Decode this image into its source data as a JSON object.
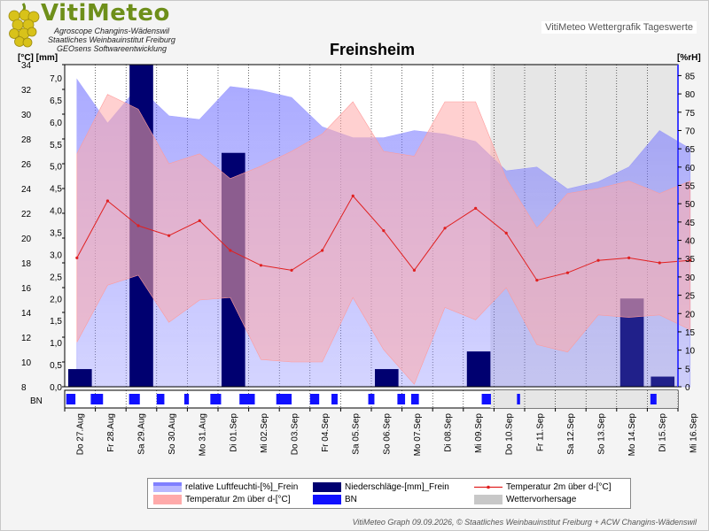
{
  "header": {
    "logo_word": "VitiMeteo",
    "logo_lines": [
      "Agroscope Changins-Wädenswil",
      "Staatliches Weinbauinstitut Freiburg",
      "GEOsens Softwareentwicklung"
    ],
    "subtitle": "VitiMeteo Wettergrafik Tageswerte"
  },
  "footer": "VitiMeteo Graph 09.09.2026, © Staatliches Weinbauinstitut Freiburg + ACW Changins-Wädenswil",
  "colors": {
    "humidity": "#7f7fff",
    "precip": "#000070",
    "temp_line": "#e02020",
    "temp_band": "#ffaaaa",
    "bn": "#1010ff",
    "forecast": "#c8c8c8"
  },
  "chart_data": {
    "type": "line",
    "title": "Freinsheim",
    "y_left_label": "[°C] [mm]",
    "y_right_label": "[%rH]",
    "x": [
      "Do 27.Aug",
      "Fr 28.Aug",
      "Sa 29.Aug",
      "So 30.Aug",
      "Mo 31.Aug",
      "Di 01.Sep",
      "Mi 02.Sep",
      "Do 03.Sep",
      "Fr 04.Sep",
      "Sa 05.Sep",
      "So 06.Sep",
      "Mo 07.Sep",
      "Di 08.Sep",
      "Mi 09.Sep",
      "Do 10.Sep",
      "Fr 11.Sep",
      "Sa 12.Sep",
      "So 13.Sep",
      "Mo 14.Sep",
      "Di 15.Sep",
      "Mi 16.Sep"
    ],
    "temp_ticks": [
      8,
      10,
      12,
      14,
      16,
      18,
      20,
      22,
      24,
      26,
      28,
      30,
      32,
      34
    ],
    "mm_ticks": [
      "0,0",
      "0,5",
      "1,0",
      "1,5",
      "2,0",
      "2,5",
      "3,0",
      "3,5",
      "4,0",
      "4,5",
      "5,0",
      "5,5",
      "6,0",
      "6,5",
      "7,0"
    ],
    "rh_ticks": [
      0,
      5,
      10,
      15,
      20,
      25,
      30,
      35,
      40,
      45,
      50,
      55,
      60,
      65,
      70,
      75,
      80,
      85
    ],
    "temp_ylim": [
      8,
      34
    ],
    "mm_ylim": [
      0,
      7.3
    ],
    "rh_ylim": [
      0,
      88
    ],
    "forecast_from_day": 14,
    "temperature_mean": [
      [
        0.4,
        18.4
      ],
      [
        1.4,
        23.0
      ],
      [
        2.4,
        21.0
      ],
      [
        3.4,
        20.2
      ],
      [
        4.4,
        21.4
      ],
      [
        5.4,
        19.0
      ],
      [
        6.4,
        17.8
      ],
      [
        7.4,
        17.4
      ],
      [
        8.4,
        19.0
      ],
      [
        9.4,
        23.4
      ],
      [
        10.4,
        20.6
      ],
      [
        11.4,
        17.4
      ],
      [
        12.4,
        20.8
      ],
      [
        13.4,
        22.4
      ],
      [
        14.4,
        20.4
      ],
      [
        15.4,
        16.6
      ],
      [
        16.4,
        17.2
      ],
      [
        17.4,
        18.2
      ],
      [
        18.4,
        18.4
      ],
      [
        19.4,
        18.0
      ],
      [
        20.4,
        18.2
      ]
    ],
    "temperature_max": [
      [
        0.4,
        26.8
      ],
      [
        1.4,
        31.6
      ],
      [
        2.4,
        30.4
      ],
      [
        3.4,
        26.0
      ],
      [
        4.4,
        26.8
      ],
      [
        5.4,
        24.8
      ],
      [
        6.4,
        25.8
      ],
      [
        7.4,
        27.0
      ],
      [
        8.4,
        28.4
      ],
      [
        9.4,
        31.0
      ],
      [
        10.4,
        27.0
      ],
      [
        11.4,
        26.6
      ],
      [
        12.4,
        31.0
      ],
      [
        13.4,
        31.0
      ],
      [
        14.4,
        24.8
      ],
      [
        15.4,
        20.8
      ],
      [
        16.4,
        23.6
      ],
      [
        17.4,
        24.0
      ],
      [
        18.4,
        24.6
      ],
      [
        19.4,
        23.6
      ],
      [
        20.4,
        24.6
      ]
    ],
    "temperature_min": [
      [
        0.4,
        11.6
      ],
      [
        1.4,
        16.2
      ],
      [
        2.4,
        17.0
      ],
      [
        3.4,
        13.2
      ],
      [
        4.4,
        15.0
      ],
      [
        5.4,
        15.2
      ],
      [
        6.4,
        10.2
      ],
      [
        7.4,
        10.0
      ],
      [
        8.4,
        10.0
      ],
      [
        9.4,
        15.2
      ],
      [
        10.4,
        11.0
      ],
      [
        11.4,
        8.2
      ],
      [
        12.4,
        14.4
      ],
      [
        13.4,
        13.4
      ],
      [
        14.4,
        16.0
      ],
      [
        15.4,
        11.4
      ],
      [
        16.4,
        10.8
      ],
      [
        17.4,
        13.8
      ],
      [
        18.4,
        13.6
      ],
      [
        19.4,
        13.8
      ],
      [
        20.4,
        12.6
      ]
    ],
    "humidity_max": [
      [
        0.4,
        84
      ],
      [
        1.4,
        72
      ],
      [
        2.4,
        82
      ],
      [
        3.4,
        74
      ],
      [
        4.4,
        73
      ],
      [
        5.4,
        82
      ],
      [
        6.4,
        81
      ],
      [
        7.4,
        79
      ],
      [
        8.4,
        71
      ],
      [
        9.4,
        68
      ],
      [
        10.4,
        68
      ],
      [
        11.4,
        70
      ],
      [
        12.4,
        69
      ],
      [
        13.4,
        67
      ],
      [
        14.4,
        59
      ],
      [
        15.4,
        60
      ],
      [
        16.4,
        54
      ],
      [
        17.4,
        56
      ],
      [
        18.4,
        60
      ],
      [
        19.4,
        70
      ],
      [
        20.4,
        65
      ]
    ],
    "humidity_min": [
      [
        0.4,
        68
      ],
      [
        1.4,
        66
      ],
      [
        2.4,
        62
      ],
      [
        3.4,
        62
      ],
      [
        4.4,
        64
      ],
      [
        5.4,
        56
      ],
      [
        6.4,
        59
      ],
      [
        7.4,
        63
      ],
      [
        8.4,
        68
      ],
      [
        9.4,
        65
      ],
      [
        10.4,
        64
      ],
      [
        11.4,
        63
      ],
      [
        12.4,
        65
      ],
      [
        13.4,
        64
      ],
      [
        14.4,
        54
      ],
      [
        15.4,
        45
      ],
      [
        16.4,
        53
      ],
      [
        17.4,
        54
      ],
      [
        18.4,
        57
      ],
      [
        19.4,
        55
      ],
      [
        20.4,
        57
      ]
    ],
    "precipitation_mm": [
      {
        "day": 0,
        "value": 0.4
      },
      {
        "day": 2,
        "value": 7.3
      },
      {
        "day": 5,
        "value": 5.3
      },
      {
        "day": 10,
        "value": 0.4
      },
      {
        "day": 13,
        "value": 0.8
      },
      {
        "day": 18,
        "value": 2.0
      },
      {
        "day": 19,
        "value": 0.23
      }
    ],
    "bn_intervals": [
      [
        0.05,
        0.35
      ],
      [
        0.85,
        1.25
      ],
      [
        2.1,
        2.45
      ],
      [
        3.0,
        3.25
      ],
      [
        3.9,
        4.05
      ],
      [
        4.75,
        5.1
      ],
      [
        5.7,
        6.2
      ],
      [
        6.9,
        7.4
      ],
      [
        8.0,
        8.3
      ],
      [
        8.7,
        8.9
      ],
      [
        9.9,
        10.1
      ],
      [
        10.85,
        11.1
      ],
      [
        11.3,
        11.55
      ],
      [
        13.6,
        13.9
      ],
      [
        14.75,
        14.85
      ],
      [
        19.1,
        19.3
      ]
    ],
    "legend": {
      "humidity": "relative Luftfeuchti-[%]_Frein",
      "precip": "Niederschläge-[mm]_Frein",
      "temp_line": "Temperatur 2m über d-[°C]",
      "temp_band": "Temperatur 2m über d-[°C]",
      "bn": "BN",
      "forecast": "Wettervorhersage"
    },
    "bn_label": "BN"
  }
}
